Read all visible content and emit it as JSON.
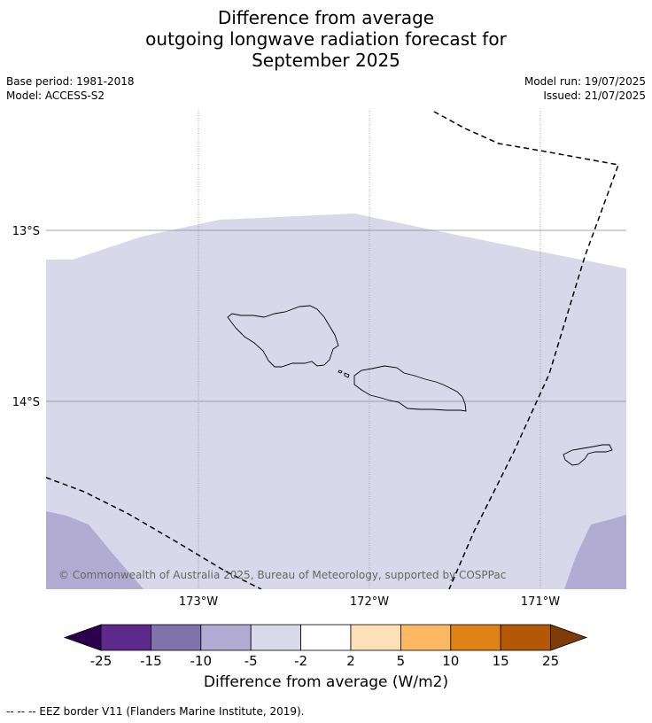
{
  "title": {
    "line1": "Difference from average",
    "line2": "outgoing longwave radiation forecast for",
    "line3": "September 2025"
  },
  "meta": {
    "base_period": "Base period: 1981-2018",
    "model": "Model: ACCESS-S2",
    "model_run": "Model run: 19/07/2025",
    "issued": "Issued: 21/07/2025"
  },
  "map": {
    "lat_labels": [
      "13°S",
      "14°S"
    ],
    "lon_labels": [
      "173°W",
      "172°W",
      "171°W"
    ],
    "copyright": "© Commonwealth of Australia 2025, Bureau of Meteorology, supported by COSPPac",
    "colors": {
      "land_outline": "#000000",
      "gridline": "#888888"
    }
  },
  "colorbar": {
    "ticks": [
      "-25",
      "-15",
      "-10",
      "-5",
      "-2",
      "2",
      "5",
      "10",
      "15",
      "25"
    ],
    "colors": [
      "#2d004b",
      "#5b2a8a",
      "#8073ac",
      "#b2abd2",
      "#d8daeb",
      "#ffffff",
      "#fee0b6",
      "#fdb863",
      "#e08214",
      "#b35806",
      "#7f3b08"
    ],
    "title": "Difference from average (W/m2)"
  },
  "footnote": "--  --  -- EEZ border V11 (Flanders Marine Institute, 2019)."
}
